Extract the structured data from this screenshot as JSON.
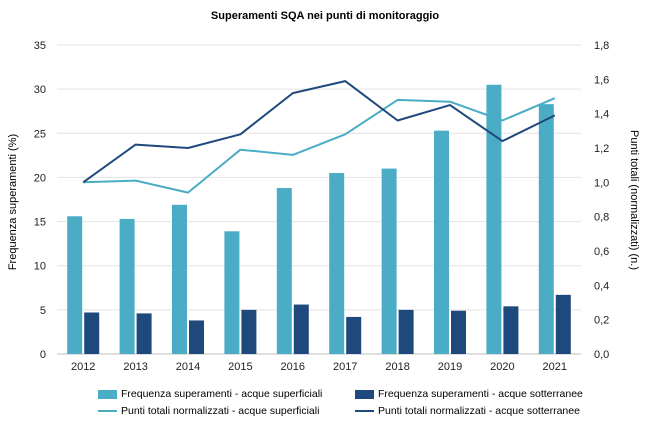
{
  "chart_data": {
    "type": "bar",
    "title": "Superamenti SQA nei punti di monitoraggio",
    "ylabel": "Frequenza superamenti (%)",
    "ylabel_right": "Punti totali (normalizzati)  (n.)",
    "categories": [
      "2012",
      "2013",
      "2014",
      "2015",
      "2016",
      "2017",
      "2018",
      "2019",
      "2020",
      "2021"
    ],
    "ylim": [
      0,
      35
    ],
    "y_ticks": [
      "0",
      "5",
      "10",
      "15",
      "20",
      "25",
      "30",
      "35"
    ],
    "ylim_right": [
      0,
      1.8
    ],
    "y_ticks_right": [
      "0,0",
      "0,2",
      "0,4",
      "0,6",
      "0,8",
      "1,0",
      "1,2",
      "1,4",
      "1,6",
      "1,8"
    ],
    "grid": true,
    "legend_position": "bottom",
    "series": [
      {
        "name": "Frequenza superamenti - acque superficiali",
        "type": "bar",
        "axis": "left",
        "color": "#4BACC6",
        "values": [
          15.6,
          15.3,
          16.9,
          13.9,
          18.8,
          20.5,
          21.0,
          25.3,
          30.5,
          28.3
        ]
      },
      {
        "name": "Frequenza superamenti - acque sotterranee",
        "type": "bar",
        "axis": "left",
        "color": "#1F497D",
        "values": [
          4.7,
          4.6,
          3.8,
          5.0,
          5.6,
          4.2,
          5.0,
          4.9,
          5.4,
          6.7
        ]
      },
      {
        "name": "Punti totali normalizzati - acque superficiali",
        "type": "line",
        "axis": "right",
        "color": "#4BACC6",
        "values": [
          1.0,
          1.01,
          0.94,
          1.19,
          1.16,
          1.28,
          1.48,
          1.47,
          1.36,
          1.49
        ]
      },
      {
        "name": "Punti totali normalizzati - acque sotterranee",
        "type": "line",
        "axis": "right",
        "color": "#1F497D",
        "values": [
          1.0,
          1.22,
          1.2,
          1.28,
          1.52,
          1.59,
          1.36,
          1.45,
          1.24,
          1.39
        ]
      }
    ]
  }
}
